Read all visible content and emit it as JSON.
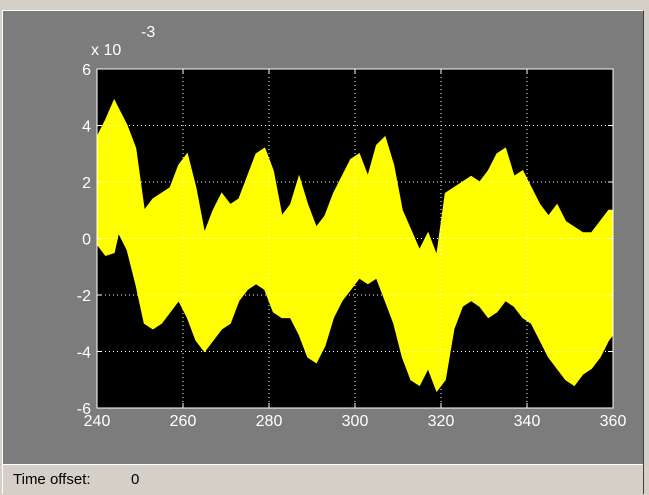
{
  "scope": {
    "status_label": "Time offset:",
    "time_offset": "0",
    "colors": {
      "panel_background": "#7c7c7c",
      "axes_background": "#000000",
      "trace": "#ffff00",
      "grid": "#ffffff",
      "text": "#ffffff",
      "status_bar": "#d4d0c8"
    }
  },
  "chart_data": {
    "type": "area",
    "title": "",
    "xlabel": "",
    "ylabel": "",
    "xlim": [
      240,
      360
    ],
    "ylim": [
      -6,
      6
    ],
    "y_exponent_label": "x 10",
    "y_exponent_power": "-3",
    "xticks": [
      "240",
      "260",
      "280",
      "300",
      "320",
      "340",
      "360"
    ],
    "yticks": [
      "6",
      "4",
      "2",
      "0",
      "-2",
      "-4",
      "-6"
    ],
    "xtick_values": [
      240,
      260,
      280,
      300,
      320,
      340,
      360
    ],
    "ytick_values": [
      6,
      4,
      2,
      0,
      -2,
      -4,
      -6
    ],
    "grid": true,
    "grid_style": "dotted",
    "legend": "none",
    "series": [
      {
        "x": [
          240,
          242,
          244,
          245,
          247,
          249,
          251,
          253,
          255,
          257,
          259,
          261,
          263,
          265,
          267,
          269,
          271,
          273,
          275,
          277,
          279,
          281,
          283,
          285,
          287,
          289,
          291,
          293,
          295,
          297,
          299,
          301,
          303,
          305,
          307,
          309,
          311,
          313,
          315,
          317,
          319,
          321,
          323,
          325,
          327,
          329,
          331,
          333,
          335,
          337,
          339,
          341,
          343,
          345,
          347,
          349,
          351,
          353,
          355,
          357,
          359,
          360
        ],
        "upper": [
          3.6,
          4.2,
          4.9,
          4.6,
          4.0,
          3.2,
          1.0,
          1.4,
          1.6,
          1.8,
          2.6,
          3.0,
          1.8,
          0.2,
          1.0,
          1.6,
          1.2,
          1.4,
          2.2,
          3.0,
          3.2,
          2.4,
          0.8,
          1.2,
          2.2,
          1.2,
          0.4,
          0.8,
          1.6,
          2.2,
          2.8,
          3.0,
          2.2,
          3.3,
          3.6,
          2.6,
          1.0,
          0.3,
          -0.4,
          0.2,
          -0.6,
          1.6,
          1.8,
          2.0,
          2.2,
          2.0,
          2.4,
          3.0,
          3.2,
          2.2,
          2.4,
          1.8,
          1.2,
          0.8,
          1.2,
          0.6,
          0.4,
          0.2,
          0.2,
          0.6,
          1.0,
          1.0
        ],
        "lower": [
          -0.2,
          -0.6,
          -0.5,
          0.2,
          -0.4,
          -1.6,
          -3.0,
          -3.2,
          -3.0,
          -2.6,
          -2.2,
          -2.8,
          -3.6,
          -4.0,
          -3.6,
          -3.2,
          -3.0,
          -2.2,
          -1.8,
          -1.6,
          -1.8,
          -2.6,
          -2.8,
          -2.8,
          -3.4,
          -4.2,
          -4.4,
          -3.8,
          -2.8,
          -2.2,
          -1.8,
          -1.4,
          -1.6,
          -1.4,
          -2.2,
          -3.0,
          -4.2,
          -5.0,
          -5.2,
          -4.6,
          -5.4,
          -5.0,
          -3.2,
          -2.4,
          -2.2,
          -2.4,
          -2.8,
          -2.6,
          -2.2,
          -2.4,
          -2.8,
          -3.0,
          -3.6,
          -4.2,
          -4.6,
          -5.0,
          -5.2,
          -4.8,
          -4.6,
          -4.2,
          -3.6,
          -3.4
        ]
      }
    ]
  }
}
